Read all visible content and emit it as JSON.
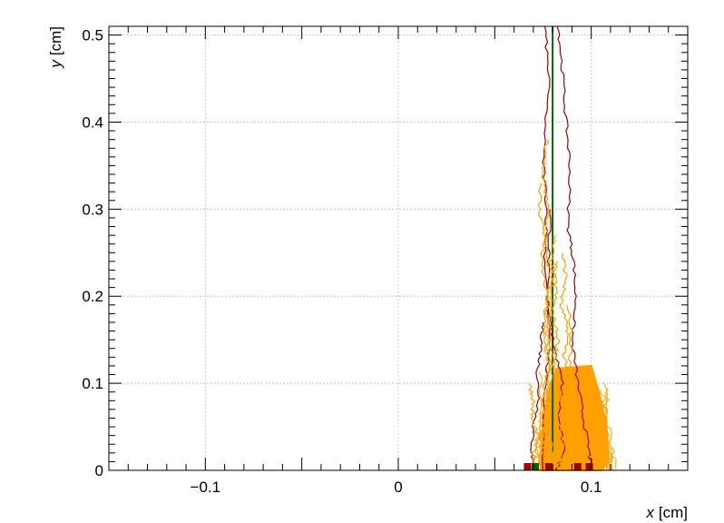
{
  "chart_data": {
    "type": "line",
    "title": "",
    "xlabel": {
      "var": "x",
      "unit": "[cm]"
    },
    "ylabel": {
      "var": "y",
      "unit": "[cm]"
    },
    "xlim": [
      -0.15,
      0.15
    ],
    "ylim": [
      0,
      0.51
    ],
    "xticks": [
      {
        "value": -0.1,
        "label": "−0.1"
      },
      {
        "value": 0,
        "label": "0"
      },
      {
        "value": 0.1,
        "label": "0.1"
      }
    ],
    "yticks": [
      {
        "value": 0,
        "label": "0"
      },
      {
        "value": 0.1,
        "label": "0.1"
      },
      {
        "value": 0.2,
        "label": "0.2"
      },
      {
        "value": 0.3,
        "label": "0.3"
      },
      {
        "value": 0.4,
        "label": "0.4"
      },
      {
        "value": 0.5,
        "label": "0.5"
      }
    ],
    "grid": true,
    "colors": {
      "drift_line": "#a00000",
      "ion_track": "#ffa000",
      "track": "#006400",
      "axis": "#000000",
      "grid": "#c8c8c8"
    },
    "series": [
      {
        "kind": "ion_track",
        "color": "#006400",
        "x": [
          0.08,
          0.08
        ],
        "y": [
          0.02,
          0.51
        ]
      },
      {
        "kind": "drift_line",
        "color": "#a00000",
        "x": [
          0.076,
          0.078,
          0.075,
          0.077,
          0.076,
          0.078,
          0.081,
          0.085,
          0.083,
          0.086,
          0.082
        ],
        "y": [
          0.51,
          0.45,
          0.36,
          0.3,
          0.24,
          0.18,
          0.14,
          0.1,
          0.06,
          0.02,
          0.0
        ]
      },
      {
        "kind": "drift_line",
        "color": "#a00000",
        "x": [
          0.083,
          0.085,
          0.087,
          0.089,
          0.088,
          0.091,
          0.092,
          0.09,
          0.093,
          0.096,
          0.099,
          0.1
        ],
        "y": [
          0.51,
          0.46,
          0.4,
          0.35,
          0.28,
          0.24,
          0.19,
          0.15,
          0.1,
          0.06,
          0.02,
          0.0
        ]
      },
      {
        "kind": "drift_line",
        "color": "#a00000",
        "x": [
          0.075,
          0.074,
          0.072,
          0.073,
          0.07,
          0.069,
          0.071
        ],
        "y": [
          0.17,
          0.14,
          0.11,
          0.08,
          0.05,
          0.02,
          0.0
        ]
      },
      {
        "kind": "drift_line",
        "color": "#a00000",
        "x": [
          0.079,
          0.078,
          0.077,
          0.079,
          0.076,
          0.075
        ],
        "y": [
          0.3,
          0.25,
          0.2,
          0.15,
          0.1,
          0.0
        ]
      },
      {
        "kind": "electron_drift",
        "color": "#ffa000",
        "x": [
          0.068,
          0.07,
          0.069,
          0.072,
          0.07,
          0.071
        ],
        "y": [
          0.1,
          0.08,
          0.06,
          0.04,
          0.02,
          0.0
        ]
      },
      {
        "kind": "electron_drift",
        "color": "#ffa000",
        "x": [
          0.074,
          0.073,
          0.076,
          0.074,
          0.077,
          0.075,
          0.078,
          0.074,
          0.076,
          0.073
        ],
        "y": [
          0.33,
          0.3,
          0.27,
          0.24,
          0.2,
          0.16,
          0.12,
          0.08,
          0.04,
          0.0
        ]
      },
      {
        "kind": "electron_drift",
        "color": "#ffa000",
        "x": [
          0.081,
          0.079,
          0.082,
          0.08,
          0.083,
          0.081,
          0.084,
          0.082,
          0.085,
          0.083
        ],
        "y": [
          0.27,
          0.24,
          0.21,
          0.18,
          0.15,
          0.12,
          0.09,
          0.06,
          0.03,
          0.0
        ]
      },
      {
        "kind": "electron_drift",
        "color": "#ffa000",
        "x": [
          0.077,
          0.075,
          0.078,
          0.076,
          0.079,
          0.077,
          0.08,
          0.078,
          0.081
        ],
        "y": [
          0.38,
          0.34,
          0.3,
          0.26,
          0.22,
          0.18,
          0.12,
          0.06,
          0.0
        ]
      },
      {
        "kind": "electron_drift",
        "color": "#ffa000",
        "x": [
          0.085,
          0.087,
          0.084,
          0.088,
          0.086,
          0.09,
          0.087,
          0.091,
          0.089
        ],
        "y": [
          0.25,
          0.22,
          0.19,
          0.16,
          0.13,
          0.1,
          0.06,
          0.03,
          0.0
        ]
      },
      {
        "kind": "electron_drift",
        "color": "#ffa000",
        "x": [
          0.082,
          0.08,
          0.078,
          0.077,
          0.079,
          0.076,
          0.074,
          0.072
        ],
        "y": [
          0.24,
          0.21,
          0.18,
          0.15,
          0.12,
          0.08,
          0.04,
          0.0
        ]
      },
      {
        "kind": "electron_drift",
        "color": "#ffa000",
        "x": [
          0.088,
          0.09,
          0.089,
          0.092,
          0.091,
          0.094,
          0.093
        ],
        "y": [
          0.19,
          0.16,
          0.13,
          0.1,
          0.07,
          0.03,
          0.0
        ]
      }
    ],
    "ion_cloud": {
      "color": "#ffa000",
      "region": {
        "xmin": 0.074,
        "xmax": 0.109,
        "ymin": 0.0,
        "ymax": 0.12
      },
      "shape": [
        {
          "x": 0.074,
          "y": 0.0
        },
        {
          "x": 0.075,
          "y": 0.06
        },
        {
          "x": 0.079,
          "y": 0.1
        },
        {
          "x": 0.082,
          "y": 0.117
        },
        {
          "x": 0.1,
          "y": 0.12
        },
        {
          "x": 0.104,
          "y": 0.09
        },
        {
          "x": 0.108,
          "y": 0.05
        },
        {
          "x": 0.109,
          "y": 0.01
        },
        {
          "x": 0.105,
          "y": 0.0
        }
      ],
      "density": 70
    },
    "base_markers": [
      {
        "x": 0.067,
        "y": 0.0,
        "color": "#a00000"
      },
      {
        "x": 0.078,
        "y": 0.0,
        "color": "#a00000"
      },
      {
        "x": 0.093,
        "y": 0.0,
        "color": "#a00000"
      },
      {
        "x": 0.099,
        "y": 0.0,
        "color": "#a00000"
      },
      {
        "x": 0.071,
        "y": 0.0,
        "color": "#006400"
      },
      {
        "x": 0.086,
        "y": 0.0,
        "color": "#ffa000"
      }
    ]
  }
}
